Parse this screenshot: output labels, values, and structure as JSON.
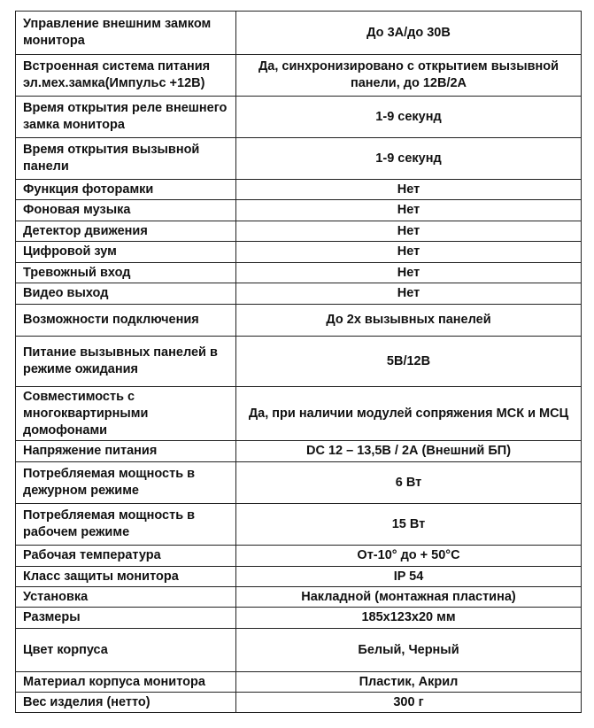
{
  "table": {
    "rows": [
      [
        "Управление внешним замком монитора",
        "До 3А/до 30В"
      ],
      [
        "Встроенная система питания эл.мех.замка(Импульс +12В)",
        "Да, синхронизировано с открытием вызывной панели, до 12В/2А"
      ],
      [
        "Время открытия реле внешнего замка монитора",
        "1-9 секунд"
      ],
      [
        "Время открытия вызывной панели",
        "1-9 секунд"
      ],
      [
        "Функция фоторамки",
        "Нет"
      ],
      [
        "Фоновая музыка",
        "Нет"
      ],
      [
        "Детектор движения",
        "Нет"
      ],
      [
        "Цифровой зум",
        "Нет"
      ],
      [
        "Тревожный вход",
        "Нет"
      ],
      [
        "Видео выход",
        "Нет"
      ],
      [
        "Возможности подключения",
        "До 2х вызывных панелей"
      ],
      [
        "Питание вызывных панелей в режиме ожидания",
        "5В/12В"
      ],
      [
        "Совместимость с многоквартирными домофонами",
        "Да, при наличии модулей сопряжения МСК и МСЦ"
      ],
      [
        "Напряжение питания",
        "DC 12 – 13,5В / 2А (Внешний БП)"
      ],
      [
        "Потребляемая мощность в дежурном режиме",
        "6 Вт"
      ],
      [
        "Потребляемая мощность в рабочем режиме",
        "15 Вт"
      ],
      [
        "Рабочая температура",
        "От-10° до + 50°С"
      ],
      [
        "Класс защиты монитора",
        "IP 54"
      ],
      [
        "Установка",
        "Накладной (монтажная пластина)"
      ],
      [
        "Размеры",
        "185x123x20 мм"
      ],
      [
        "Цвет корпуса",
        "Белый, Черный"
      ],
      [
        "Материал корпуса монитора",
        "Пластик, Акрил"
      ],
      [
        "Вес изделия (нетто)",
        "300 г"
      ]
    ]
  }
}
